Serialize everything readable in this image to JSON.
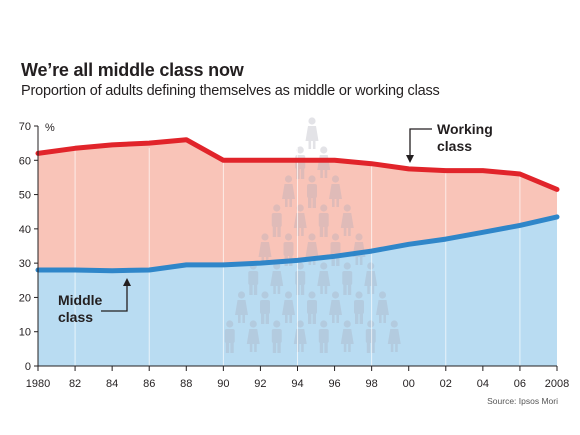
{
  "header": {
    "title": "We’re all middle class now",
    "subtitle": "Proportion of adults defining themselves as middle or working class",
    "source": "Source: Ipsos Mori"
  },
  "colors": {
    "working_line": "#e1242a",
    "working_fill": "#f9c4b8",
    "middle_line": "#2f86c9",
    "middle_fill": "#b9dcf2",
    "axis": "#231f20"
  },
  "chart_data": {
    "type": "area",
    "title": "We’re all middle class now",
    "subtitle": "Proportion of adults defining themselves as middle or working class",
    "ylabel": "%",
    "ylim": [
      0,
      70
    ],
    "xlim": [
      1980,
      2008
    ],
    "y_ticks": [
      0,
      10,
      20,
      30,
      40,
      50,
      60,
      70
    ],
    "x_ticks": [
      1980,
      1982,
      1984,
      1986,
      1988,
      1990,
      1992,
      1994,
      1996,
      1998,
      2000,
      2002,
      2004,
      2006,
      2008
    ],
    "x_tick_labels": [
      "1980",
      "82",
      "84",
      "86",
      "88",
      "90",
      "92",
      "94",
      "96",
      "98",
      "00",
      "02",
      "04",
      "06",
      "2008"
    ],
    "series": [
      {
        "name": "Working class",
        "label_lines": [
          "Working",
          "class"
        ],
        "x": [
          1980,
          1982,
          1984,
          1986,
          1988,
          1990,
          1992,
          1994,
          1996,
          1998,
          2000,
          2002,
          2004,
          2006,
          2008
        ],
        "values": [
          62,
          63.5,
          64.5,
          65,
          66,
          60,
          60,
          60,
          60,
          59,
          57.5,
          57,
          57,
          56,
          51.5
        ]
      },
      {
        "name": "Middle class",
        "label_lines": [
          "Middle",
          "class"
        ],
        "x": [
          1980,
          1982,
          1984,
          1986,
          1988,
          1990,
          1992,
          1994,
          1996,
          1998,
          2000,
          2002,
          2004,
          2006,
          2008
        ],
        "values": [
          28,
          28,
          27.8,
          28,
          29.5,
          29.5,
          30,
          30.8,
          32,
          33.5,
          35.5,
          37,
          39,
          41,
          43.5
        ]
      }
    ],
    "gridlines": "vertical",
    "background_decoration": "people-figures-pyramid"
  }
}
